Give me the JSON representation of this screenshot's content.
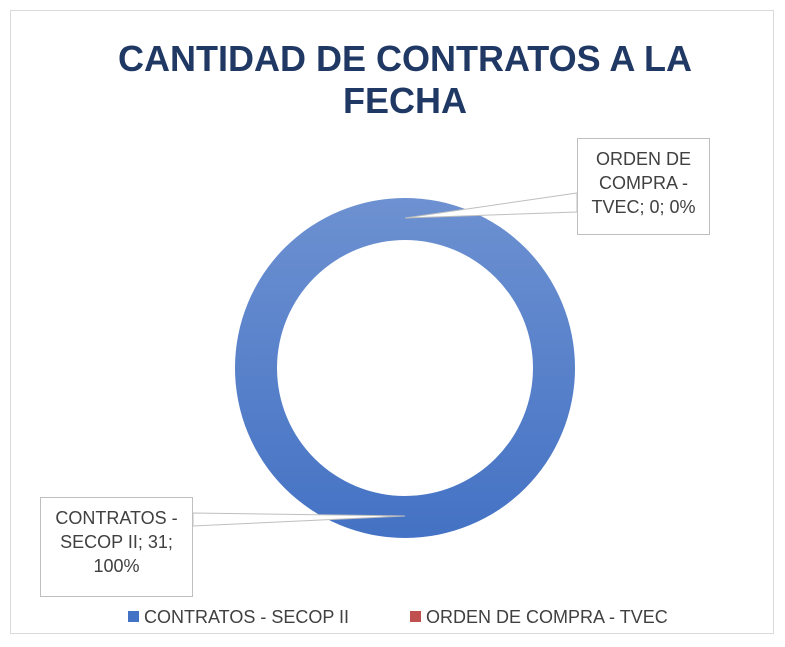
{
  "chart_data": {
    "type": "doughnut",
    "title": "CANTIDAD DE CONTRATOS A LA FECHA",
    "categories": [
      "CONTRATOS - SECOP II",
      "ORDEN DE COMPRA - TVEC"
    ],
    "values": [
      31,
      0
    ],
    "value_labels": [
      "CONTRATOS - SECOP II; 31; 100%",
      "ORDEN DE COMPRA - TVEC; 0; 0%"
    ],
    "colors": [
      "#4472c4",
      "#c0504d"
    ],
    "legend": "bottom"
  }
}
